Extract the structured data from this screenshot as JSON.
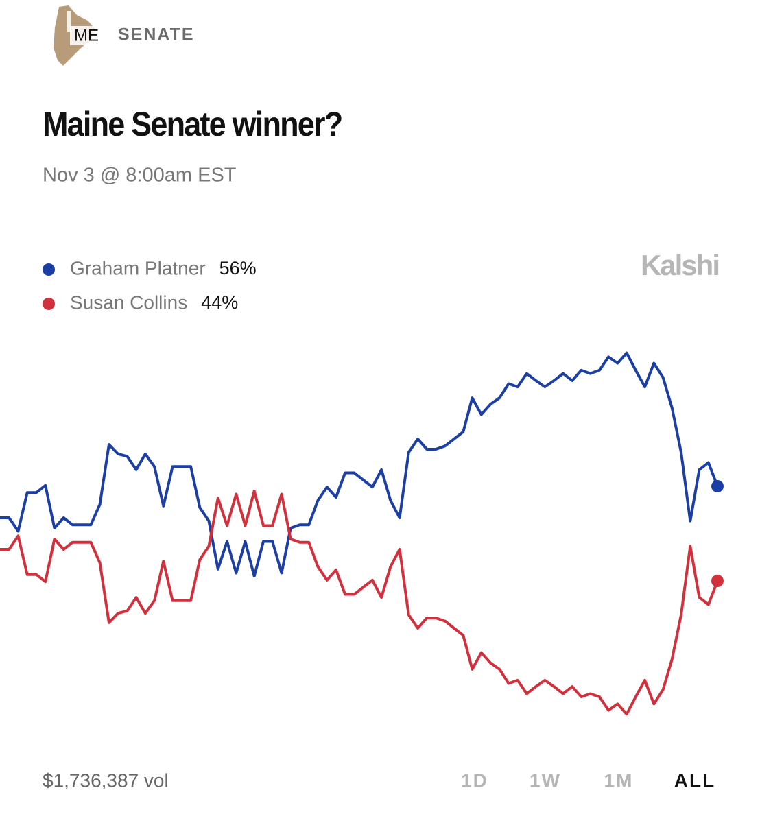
{
  "header": {
    "badge": "ME",
    "category": "SENATE"
  },
  "brand": "Kalshi",
  "volume": "$1,736,387 vol",
  "ranges": [
    "1D",
    "1W",
    "1M",
    "ALL"
  ],
  "selected_range": "ALL",
  "chart_data": {
    "type": "line",
    "title": "Maine Senate winner?",
    "subtitle": "Nov 3 @ 8:00am EST",
    "ylim": [
      24,
      76
    ],
    "series": [
      {
        "name": "Graham Platner",
        "color": "#1c3fa6",
        "legend_value": "56%",
        "values": [
          52,
          52,
          50.3,
          55.2,
          55.2,
          56.1,
          50.7,
          52,
          51.1,
          51.1,
          51.1,
          53.7,
          61.3,
          60.1,
          59.8,
          58.1,
          60.1,
          58.5,
          53.5,
          58.5,
          58.5,
          58.5,
          53.3,
          51.6,
          45.5,
          49,
          45,
          49,
          44.6,
          49,
          49,
          45,
          50.7,
          51.1,
          51.1,
          54.2,
          55.9,
          54.6,
          57.7,
          57.7,
          56.8,
          55.9,
          58.1,
          54.2,
          52,
          60.3,
          62,
          60.7,
          60.7,
          61.1,
          62,
          62.9,
          67.2,
          65.1,
          66.4,
          67.2,
          69,
          68.6,
          70.3,
          69.4,
          68.6,
          69.4,
          70.3,
          69.4,
          70.7,
          70.3,
          70.7,
          72.4,
          71.6,
          72.9,
          70.7,
          68.6,
          71.6,
          69.8,
          65.9,
          60.3,
          51.6,
          58.1,
          59,
          56
        ]
      },
      {
        "name": "Susan Collins",
        "color": "#d3303e",
        "legend_value": "44%",
        "values": [
          48,
          48,
          49.7,
          44.8,
          44.8,
          43.9,
          49.3,
          48,
          48.9,
          48.9,
          48.9,
          46.3,
          38.7,
          39.9,
          40.2,
          41.9,
          39.9,
          41.5,
          46.5,
          41.5,
          41.5,
          41.5,
          46.7,
          48.4,
          54.5,
          51,
          55,
          51,
          55.4,
          51,
          51,
          55,
          49.3,
          48.9,
          48.9,
          45.8,
          44.1,
          45.4,
          42.3,
          42.3,
          43.2,
          44.1,
          41.9,
          45.8,
          48,
          39.7,
          38,
          39.3,
          39.3,
          38.9,
          38,
          37.1,
          32.8,
          34.9,
          33.6,
          32.8,
          31,
          31.4,
          29.7,
          30.6,
          31.4,
          30.6,
          29.7,
          30.6,
          29.3,
          29.7,
          29.3,
          27.6,
          28.4,
          27.1,
          29.3,
          31.4,
          28.4,
          30.2,
          34.1,
          39.7,
          48.4,
          41.9,
          41,
          44
        ]
      }
    ]
  }
}
